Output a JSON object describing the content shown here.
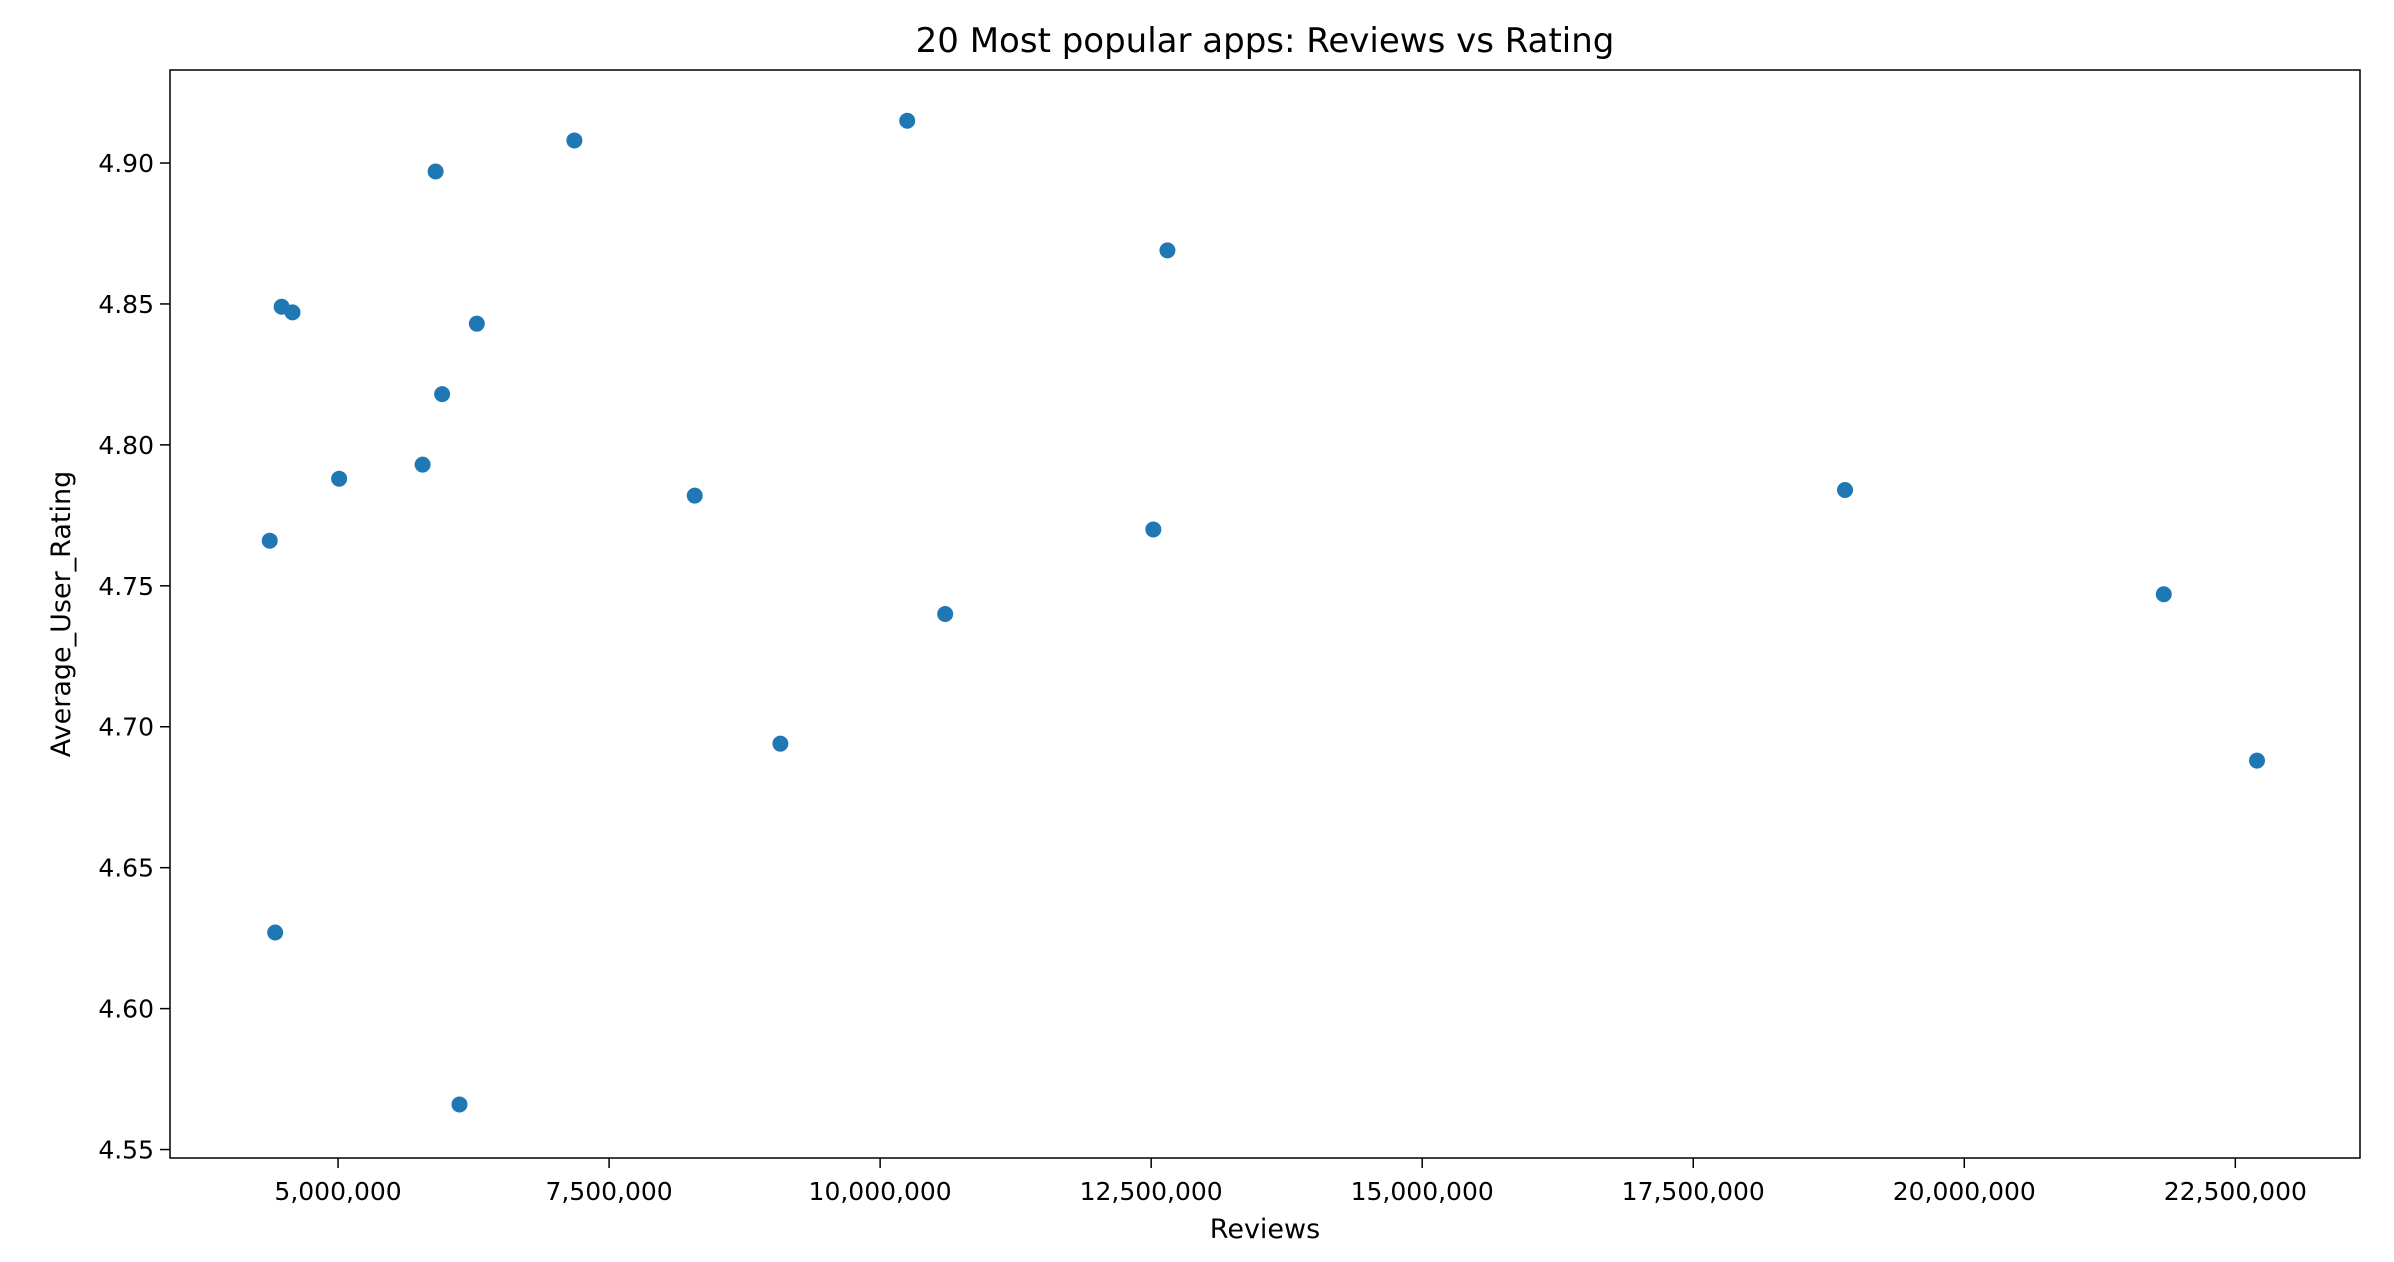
{
  "chart_data": {
    "type": "scatter",
    "title": "20 Most popular apps: Reviews vs Rating",
    "xlabel": "Reviews",
    "ylabel": "Average_User_Rating",
    "xlim": [
      3450000,
      23650000
    ],
    "ylim": [
      4.547,
      4.933
    ],
    "xticks": [
      5000000,
      7500000,
      10000000,
      12500000,
      15000000,
      17500000,
      20000000,
      22500000
    ],
    "xtick_labels": [
      "5,000,000",
      "7,500,000",
      "10,000,000",
      "12,500,000",
      "15,000,000",
      "17,500,000",
      "20,000,000",
      "22,500,000"
    ],
    "yticks": [
      4.55,
      4.6,
      4.65,
      4.7,
      4.75,
      4.8,
      4.85,
      4.9
    ],
    "ytick_labels": [
      "4.55",
      "4.60",
      "4.65",
      "4.70",
      "4.75",
      "4.80",
      "4.85",
      "4.90"
    ],
    "grid": false,
    "color": "#1f77b4",
    "points": [
      {
        "x": 10250000,
        "y": 4.915
      },
      {
        "x": 7180000,
        "y": 4.908
      },
      {
        "x": 5900000,
        "y": 4.897
      },
      {
        "x": 12650000,
        "y": 4.869
      },
      {
        "x": 4480000,
        "y": 4.849
      },
      {
        "x": 4580000,
        "y": 4.847
      },
      {
        "x": 6280000,
        "y": 4.843
      },
      {
        "x": 5960000,
        "y": 4.818
      },
      {
        "x": 5780000,
        "y": 4.793
      },
      {
        "x": 5010000,
        "y": 4.788
      },
      {
        "x": 18900000,
        "y": 4.784
      },
      {
        "x": 8290000,
        "y": 4.782
      },
      {
        "x": 12520000,
        "y": 4.77
      },
      {
        "x": 4370000,
        "y": 4.766
      },
      {
        "x": 21840000,
        "y": 4.747
      },
      {
        "x": 10600000,
        "y": 4.74
      },
      {
        "x": 9080000,
        "y": 4.694
      },
      {
        "x": 22700000,
        "y": 4.688
      },
      {
        "x": 4420000,
        "y": 4.627
      },
      {
        "x": 6120000,
        "y": 4.566
      }
    ]
  }
}
